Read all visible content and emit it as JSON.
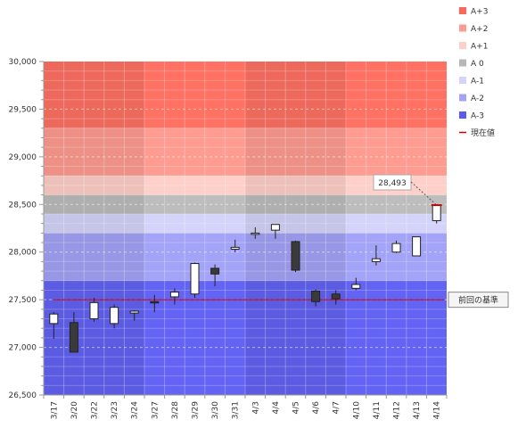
{
  "chart_data": {
    "type": "candlestick",
    "categories": [
      "3/17",
      "3/20",
      "3/22",
      "3/23",
      "3/24",
      "3/27",
      "3/28",
      "3/29",
      "3/30",
      "3/31",
      "4/3",
      "4/4",
      "4/5",
      "4/6",
      "4/7",
      "4/10",
      "4/11",
      "4/12",
      "4/13",
      "4/14"
    ],
    "ohlc": [
      {
        "open": 27250,
        "high": 27370,
        "low": 27090,
        "close": 27350
      },
      {
        "open": 27260,
        "high": 27370,
        "low": 26950,
        "close": 26950
      },
      {
        "open": 27300,
        "high": 27520,
        "low": 27270,
        "close": 27470
      },
      {
        "open": 27250,
        "high": 27450,
        "low": 27200,
        "close": 27420
      },
      {
        "open": 27360,
        "high": 27390,
        "low": 27280,
        "close": 27380
      },
      {
        "open": 27480,
        "high": 27550,
        "low": 27370,
        "close": 27470
      },
      {
        "open": 27530,
        "high": 27620,
        "low": 27450,
        "close": 27580
      },
      {
        "open": 27560,
        "high": 27890,
        "low": 27520,
        "close": 27880
      },
      {
        "open": 27830,
        "high": 27870,
        "low": 27640,
        "close": 27770
      },
      {
        "open": 28030,
        "high": 28130,
        "low": 28000,
        "close": 28050
      },
      {
        "open": 28200,
        "high": 28260,
        "low": 28140,
        "close": 28200
      },
      {
        "open": 28230,
        "high": 28290,
        "low": 28140,
        "close": 28290
      },
      {
        "open": 28110,
        "high": 28120,
        "low": 27790,
        "close": 27810
      },
      {
        "open": 27590,
        "high": 27610,
        "low": 27430,
        "close": 27480
      },
      {
        "open": 27560,
        "high": 27600,
        "low": 27450,
        "close": 27510
      },
      {
        "open": 27620,
        "high": 27730,
        "low": 27600,
        "close": 27660
      },
      {
        "open": 27900,
        "high": 28070,
        "low": 27860,
        "close": 27930
      },
      {
        "open": 28000,
        "high": 28120,
        "low": 27990,
        "close": 28090
      },
      {
        "open": 27960,
        "high": 28160,
        "low": 27960,
        "close": 28160
      },
      {
        "open": 28330,
        "high": 28500,
        "low": 28300,
        "close": 28490
      }
    ],
    "ylim": [
      26500,
      30000
    ],
    "yticks": [
      "26,500",
      "27,000",
      "27,500",
      "28,000",
      "28,500",
      "29,000",
      "29,500",
      "30,000"
    ],
    "ytick_values": [
      26500,
      27000,
      27500,
      28000,
      28500,
      29000,
      29500,
      30000
    ],
    "zones": [
      {
        "name": "A+3",
        "from": 29300,
        "to": 30000,
        "color": "#ff7163"
      },
      {
        "name": "A+2",
        "from": 28800,
        "to": 29300,
        "color": "#ff9c92"
      },
      {
        "name": "A+1",
        "from": 28600,
        "to": 28800,
        "color": "#ffd0c9"
      },
      {
        "name": "A 0",
        "from": 28400,
        "to": 28600,
        "color": "#bdbdbd"
      },
      {
        "name": "A-1",
        "from": 28200,
        "to": 28400,
        "color": "#d4d4fa"
      },
      {
        "name": "A-2",
        "from": 27700,
        "to": 28200,
        "color": "#a3a3f7"
      },
      {
        "name": "A-3",
        "from": 26500,
        "to": 27700,
        "color": "#6464f4"
      }
    ],
    "legend": [
      {
        "label": "A+3",
        "color": "#ff6655"
      },
      {
        "label": "A+2",
        "color": "#ff9a92"
      },
      {
        "label": "A+1",
        "color": "#ffd0c9"
      },
      {
        "label": "A 0",
        "color": "#b8b8b8"
      },
      {
        "label": "A-1",
        "color": "#d4d4fa"
      },
      {
        "label": "A-2",
        "color": "#a3a3f7"
      },
      {
        "label": "A-3",
        "color": "#5a5af2"
      },
      {
        "label": "現在値",
        "color": "#cc0000"
      }
    ],
    "reference_line": {
      "label": "前回の基準",
      "value": 27500,
      "color": "#cc0000"
    },
    "current_value": {
      "label": "28,493",
      "value": 28493
    },
    "shaded_category_ranges": [
      [
        0,
        4
      ],
      [
        10,
        14
      ]
    ],
    "grid": true,
    "legend_position": "top-right"
  }
}
